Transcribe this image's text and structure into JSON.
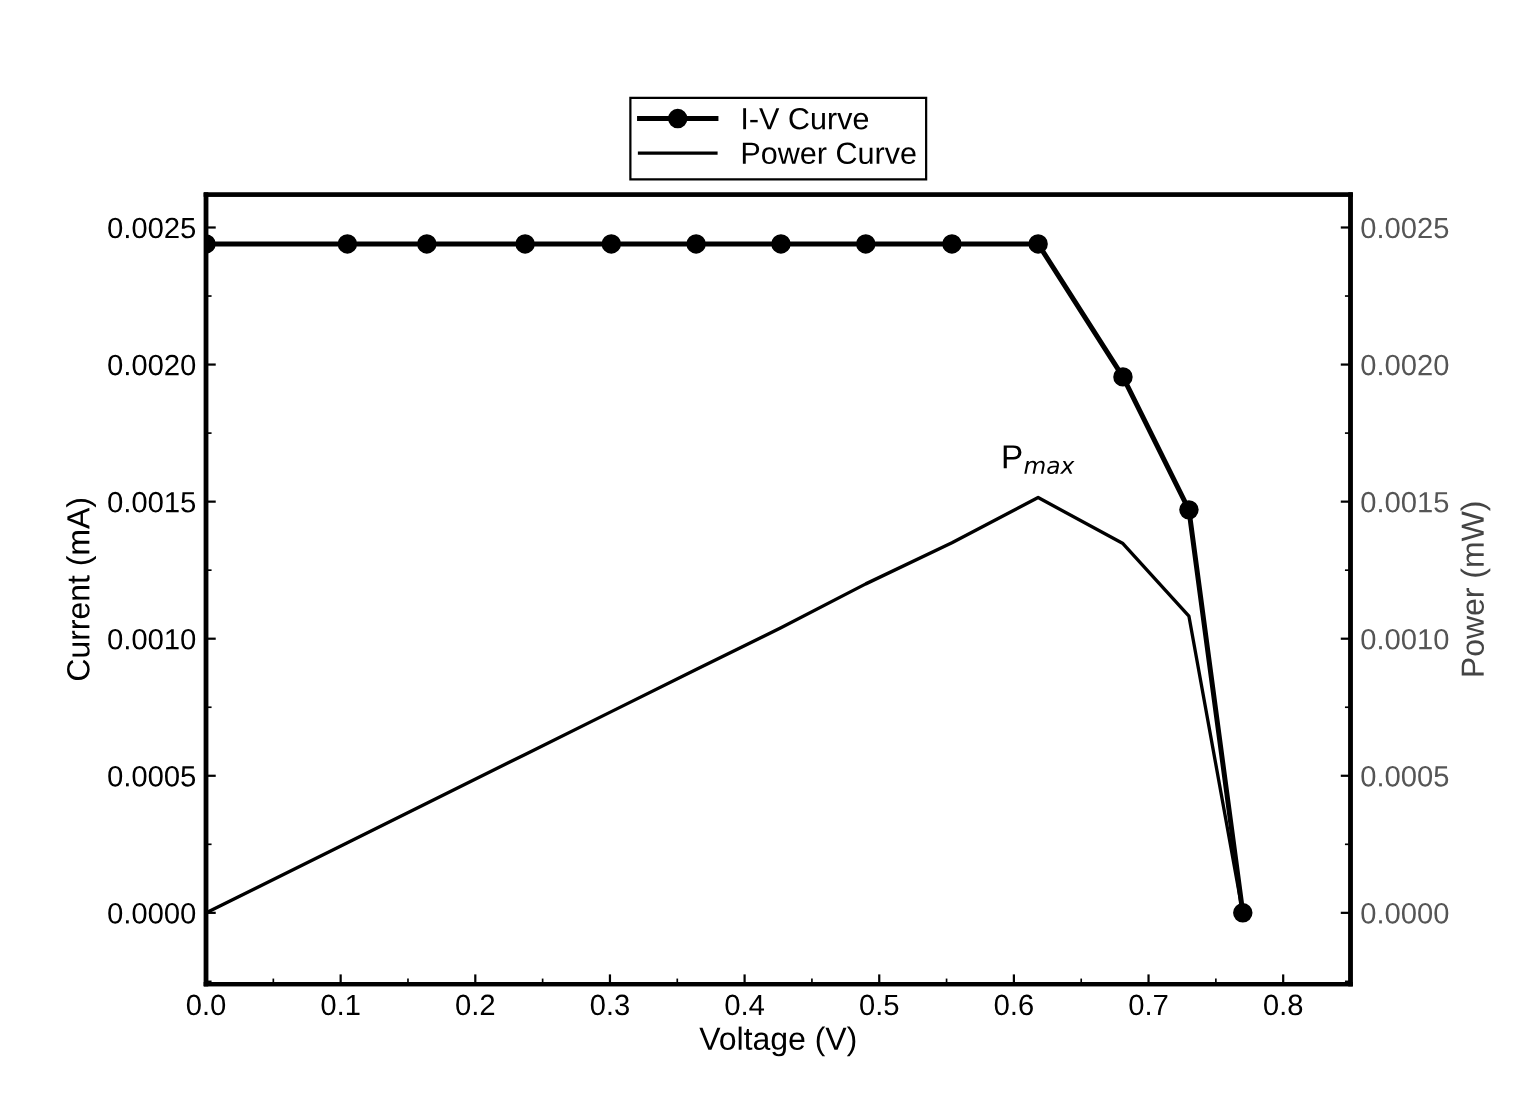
{
  "chart_data": {
    "type": "line",
    "xlabel": "Voltage (V)",
    "ylabel": "Current (mA)",
    "y2label": "Power (mW)",
    "x": [
      0,
      0.105,
      0.164,
      0.237,
      0.301,
      0.364,
      0.427,
      0.49,
      0.554,
      0.618,
      0.681,
      0.73,
      0.77
    ],
    "series": [
      {
        "name": "I-V Curve",
        "color": "#000000",
        "marker": "circle",
        "values": [
          0.00244,
          0.00244,
          0.00244,
          0.00244,
          0.00244,
          0.00244,
          0.00244,
          0.00244,
          0.00244,
          0.00244,
          0.001955,
          0.00147,
          0
        ]
      },
      {
        "name": "Power Curve",
        "color": "#000000",
        "marker": "none",
        "axis": "y2",
        "values": [
          0,
          0.000256,
          0.0004,
          0.000578,
          0.000734,
          0.000888,
          0.00104,
          0.0012,
          0.00135,
          0.001515,
          0.001347,
          0.001082,
          0
        ]
      }
    ],
    "xlim": [
      0,
      0.85
    ],
    "xticks": [
      {
        "value": 0,
        "label": "0.0"
      },
      0.1,
      0.2,
      0.3,
      0.4,
      0.5,
      0.6,
      0.7,
      0.8
    ],
    "ylim": [
      -0.00026,
      0.00262
    ],
    "yticks": [
      {
        "value": 0,
        "label": "0.0000"
      },
      0.0005,
      {
        "value": 0.001,
        "label": "0.0010"
      },
      0.0015,
      {
        "value": 0.002,
        "label": "0.0020"
      },
      0.0025
    ],
    "y2lim": [
      -0.00026,
      0.00262
    ],
    "y2ticks": [
      {
        "value": 0,
        "label": "0.0000"
      },
      0.0005,
      {
        "value": 0.001,
        "label": "0.0010"
      },
      0.0015,
      {
        "value": 0.002,
        "label": "0.0020"
      },
      0.0025
    ],
    "annotations": [
      {
        "text": "P$_{max}$",
        "x": 0.618,
        "y": 0.001515
      }
    ],
    "legend": "top",
    "grid": false
  }
}
